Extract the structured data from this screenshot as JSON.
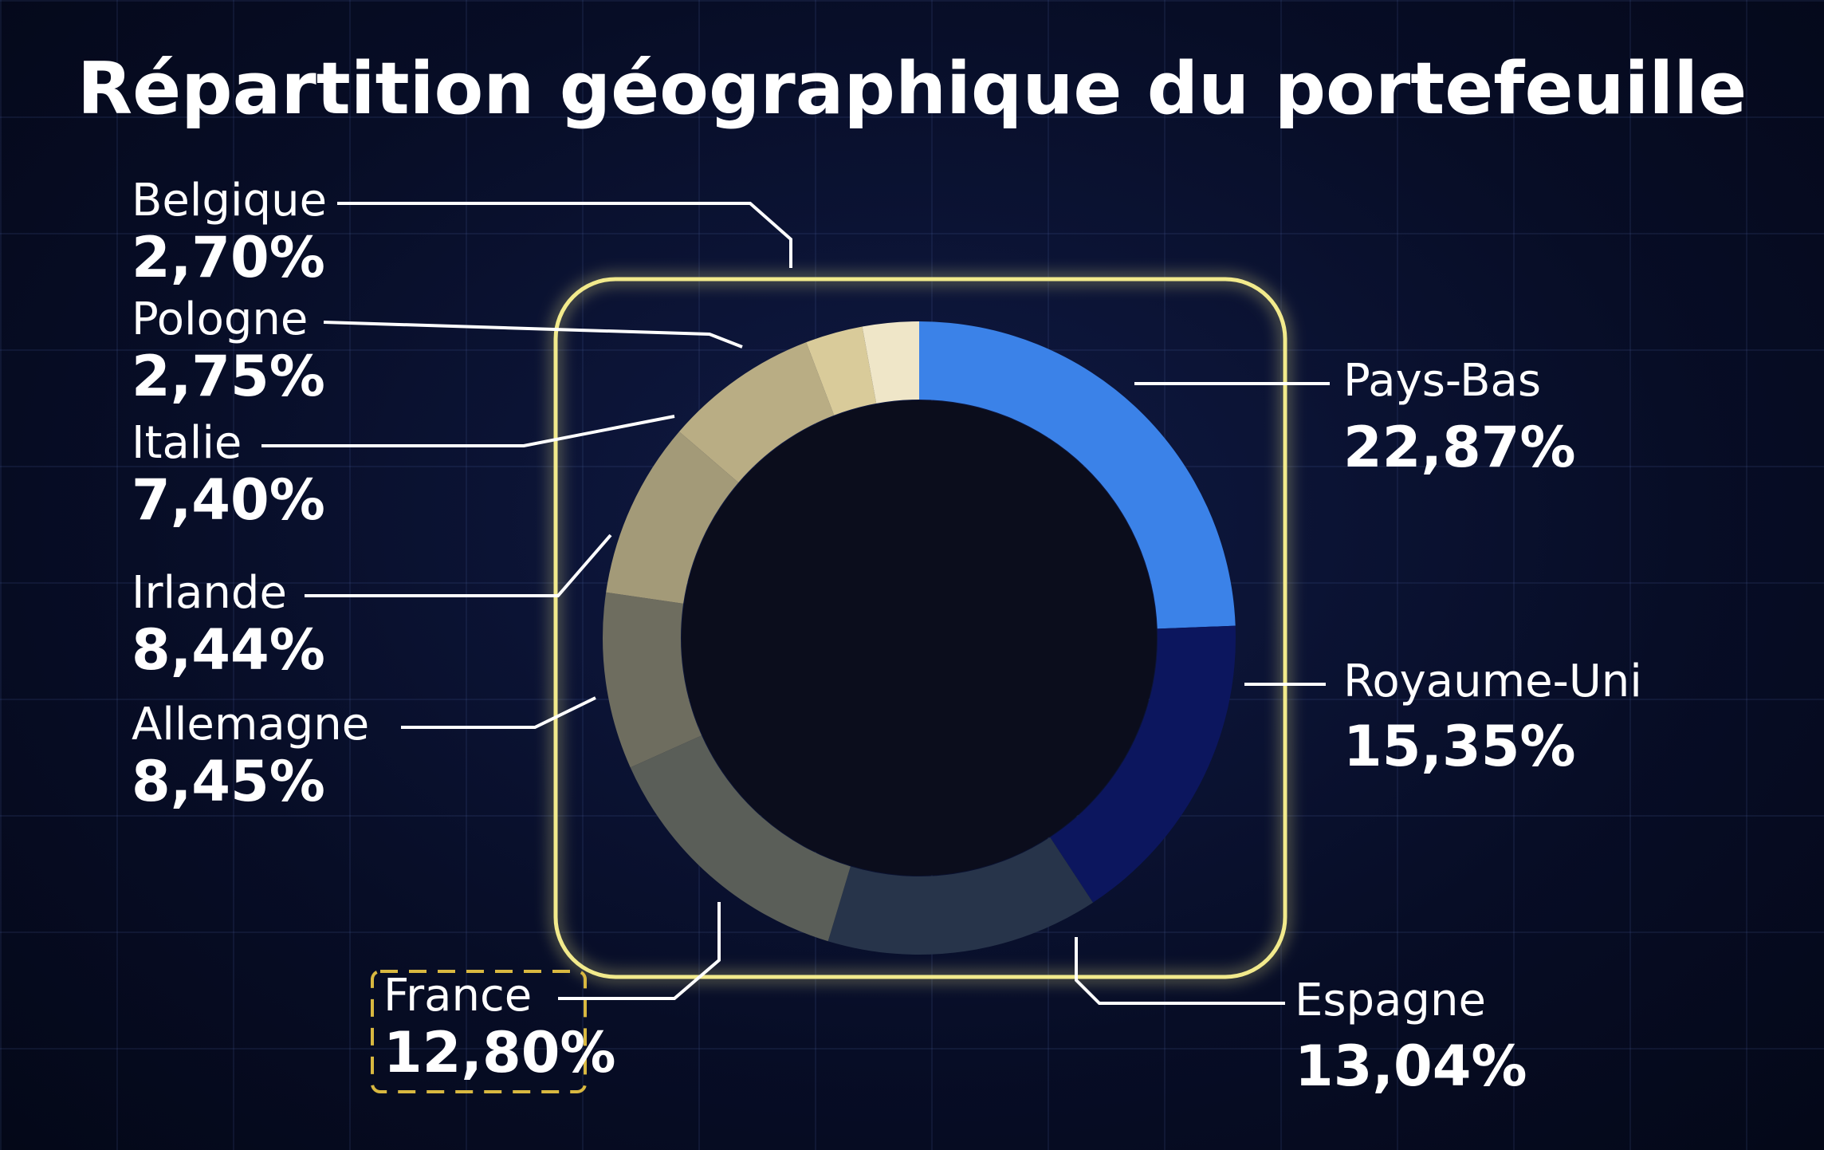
{
  "chart_data": {
    "type": "donut",
    "title": "Répartition géographique du portefeuille",
    "categories": [
      "Pays-Bas",
      "Royaume-Uni",
      "Espagne",
      "France",
      "Allemagne",
      "Irlande",
      "Italie",
      "Pologne",
      "Belgique"
    ],
    "values": [
      22.87,
      15.35,
      13.04,
      12.8,
      8.45,
      8.44,
      7.4,
      2.75,
      2.7
    ],
    "value_labels": [
      "22,87%",
      "15,35%",
      "13,04%",
      "12,80%",
      "8,45%",
      "8,44%",
      "7,40%",
      "2,75%",
      "2,70%"
    ],
    "colors": [
      "#3b82e8",
      "#0c165e",
      "#27344a",
      "#5a5e58",
      "#6e6d5f",
      "#a39a78",
      "#b9ad84",
      "#d9cb9a",
      "#efe6c8"
    ]
  }
}
